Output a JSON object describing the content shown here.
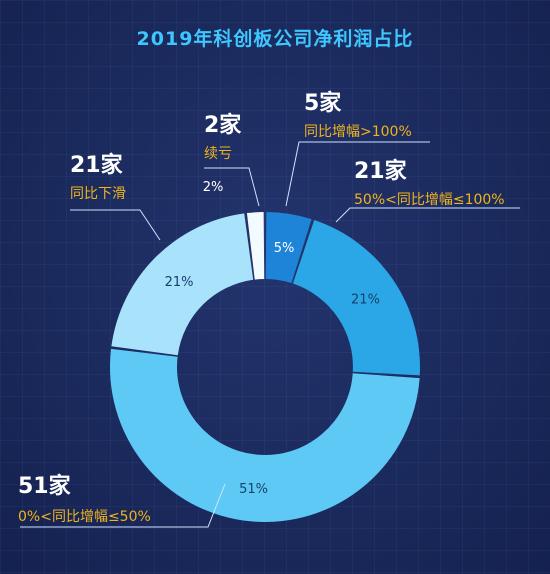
{
  "title": "2019年科创板公司净利润占比",
  "colors": {
    "background": "#1b2a5c",
    "title": "#3ec7ff",
    "count": "#ffffff",
    "description": "#f0b41c",
    "leader_line": "#cfe2ff"
  },
  "chart_data": {
    "type": "pie",
    "hole": true,
    "slices": [
      {
        "count_label": "5家",
        "description": "同比增幅>100%",
        "value": 5,
        "label": "5%",
        "color": "#1e84d8",
        "text_color": "#ffffff"
      },
      {
        "count_label": "21家",
        "description": "50%<同比增幅≤100%",
        "value": 21,
        "label": "21%",
        "color": "#2ba6e6",
        "text_color": "#17406e"
      },
      {
        "count_label": "51家",
        "description": "0%<同比增幅≤50%",
        "value": 51,
        "label": "51%",
        "color": "#5fc9f6",
        "text_color": "#17406e"
      },
      {
        "count_label": "21家",
        "description": "同比下滑",
        "value": 21,
        "label": "21%",
        "color": "#a9e2fb",
        "text_color": "#17406e"
      },
      {
        "count_label": "2家",
        "description": "续亏",
        "value": 2,
        "label": "2%",
        "color": "#f4fbff",
        "text_color": "#ffffff"
      }
    ]
  }
}
